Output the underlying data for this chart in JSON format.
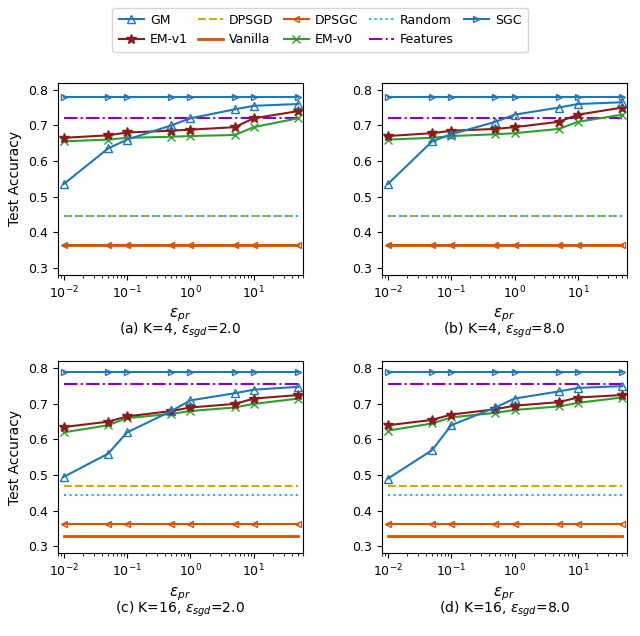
{
  "eps_pr": [
    0.01,
    0.05,
    0.1,
    0.5,
    1.0,
    5.0,
    10.0,
    50.0
  ],
  "subplot_titles": [
    "(a) K=4, $\\epsilon_{sgd}$=2.0",
    "(b) K=4, $\\epsilon_{sgd}$=8.0",
    "(c) K=16, $\\epsilon_{sgd}$=2.0",
    "(d) K=16, $\\epsilon_{sgd}$=8.0"
  ],
  "GM": [
    [
      0.535,
      0.635,
      0.66,
      0.7,
      0.72,
      0.745,
      0.755,
      0.76
    ],
    [
      0.535,
      0.655,
      0.675,
      0.71,
      0.73,
      0.75,
      0.76,
      0.765
    ],
    [
      0.495,
      0.56,
      0.62,
      0.68,
      0.71,
      0.73,
      0.74,
      0.748
    ],
    [
      0.49,
      0.57,
      0.64,
      0.69,
      0.715,
      0.735,
      0.745,
      0.75
    ]
  ],
  "EM_v1": [
    [
      0.665,
      0.672,
      0.68,
      0.685,
      0.688,
      0.695,
      0.72,
      0.74
    ],
    [
      0.67,
      0.678,
      0.685,
      0.69,
      0.695,
      0.71,
      0.73,
      0.75
    ],
    [
      0.635,
      0.65,
      0.665,
      0.68,
      0.69,
      0.7,
      0.715,
      0.725
    ],
    [
      0.64,
      0.655,
      0.67,
      0.685,
      0.695,
      0.705,
      0.718,
      0.725
    ]
  ],
  "EM_v0": [
    [
      0.655,
      0.66,
      0.665,
      0.668,
      0.67,
      0.673,
      0.695,
      0.72
    ],
    [
      0.66,
      0.665,
      0.67,
      0.675,
      0.678,
      0.69,
      0.71,
      0.73
    ],
    [
      0.62,
      0.64,
      0.66,
      0.672,
      0.68,
      0.69,
      0.7,
      0.715
    ],
    [
      0.625,
      0.645,
      0.662,
      0.675,
      0.683,
      0.693,
      0.703,
      0.718
    ]
  ],
  "DPSGD_vals": [
    [
      0.445,
      0.445,
      0.445,
      0.445,
      0.445,
      0.445,
      0.445,
      0.445
    ],
    [
      0.445,
      0.445,
      0.445,
      0.445,
      0.445,
      0.445,
      0.445,
      0.445
    ],
    [
      0.47,
      0.47,
      0.47,
      0.47,
      0.47,
      0.47,
      0.47,
      0.47
    ],
    [
      0.47,
      0.47,
      0.47,
      0.47,
      0.47,
      0.47,
      0.47,
      0.47
    ]
  ],
  "Random_vals": [
    [
      0.445,
      0.445,
      0.445,
      0.445,
      0.445,
      0.445,
      0.445,
      0.445
    ],
    [
      0.445,
      0.445,
      0.445,
      0.445,
      0.445,
      0.445,
      0.445,
      0.445
    ],
    [
      0.445,
      0.445,
      0.445,
      0.445,
      0.445,
      0.445,
      0.445,
      0.445
    ],
    [
      0.445,
      0.445,
      0.445,
      0.445,
      0.445,
      0.445,
      0.445,
      0.445
    ]
  ],
  "Features_vals": [
    [
      0.72,
      0.72,
      0.72,
      0.72,
      0.72,
      0.72,
      0.72,
      0.72
    ],
    [
      0.72,
      0.72,
      0.72,
      0.72,
      0.72,
      0.72,
      0.72,
      0.72
    ],
    [
      0.755,
      0.755,
      0.755,
      0.755,
      0.755,
      0.755,
      0.755,
      0.755
    ],
    [
      0.755,
      0.755,
      0.755,
      0.755,
      0.755,
      0.755,
      0.755,
      0.755
    ]
  ],
  "Vanilla_vals": [
    [
      0.363,
      0.363,
      0.363,
      0.363,
      0.363,
      0.363,
      0.363,
      0.363
    ],
    [
      0.363,
      0.363,
      0.363,
      0.363,
      0.363,
      0.363,
      0.363,
      0.363
    ],
    [
      0.33,
      0.33,
      0.33,
      0.33,
      0.33,
      0.33,
      0.33,
      0.33
    ],
    [
      0.33,
      0.33,
      0.33,
      0.33,
      0.33,
      0.33,
      0.33,
      0.33
    ]
  ],
  "DPSGC_vals": [
    [
      0.363,
      0.363,
      0.363,
      0.363,
      0.363,
      0.363,
      0.363,
      0.363
    ],
    [
      0.363,
      0.363,
      0.363,
      0.363,
      0.363,
      0.363,
      0.363,
      0.363
    ],
    [
      0.363,
      0.363,
      0.363,
      0.363,
      0.363,
      0.363,
      0.363,
      0.363
    ],
    [
      0.363,
      0.363,
      0.363,
      0.363,
      0.363,
      0.363,
      0.363,
      0.363
    ]
  ],
  "SGC_vals": [
    [
      0.78,
      0.78,
      0.78,
      0.78,
      0.78,
      0.78,
      0.78,
      0.78
    ],
    [
      0.78,
      0.78,
      0.78,
      0.78,
      0.78,
      0.78,
      0.78,
      0.78
    ],
    [
      0.79,
      0.79,
      0.79,
      0.79,
      0.79,
      0.79,
      0.79,
      0.79
    ],
    [
      0.79,
      0.79,
      0.79,
      0.79,
      0.79,
      0.79,
      0.79,
      0.79
    ]
  ],
  "colors": {
    "GM": "#1f77b4",
    "EM_v1": "#8b1a1a",
    "EM_v0": "#2ca02c",
    "DPSGD": "#d4aa00",
    "Random": "#00bfff",
    "Features": "#8b00c8",
    "Vanilla": "#d45500",
    "DPSGC": "#d45500",
    "SGC": "#1f77b4"
  },
  "ylim": [
    0.28,
    0.82
  ],
  "yticks": [
    0.3,
    0.4,
    0.5,
    0.6,
    0.7,
    0.8
  ],
  "xlim": [
    0.008,
    60.0
  ]
}
